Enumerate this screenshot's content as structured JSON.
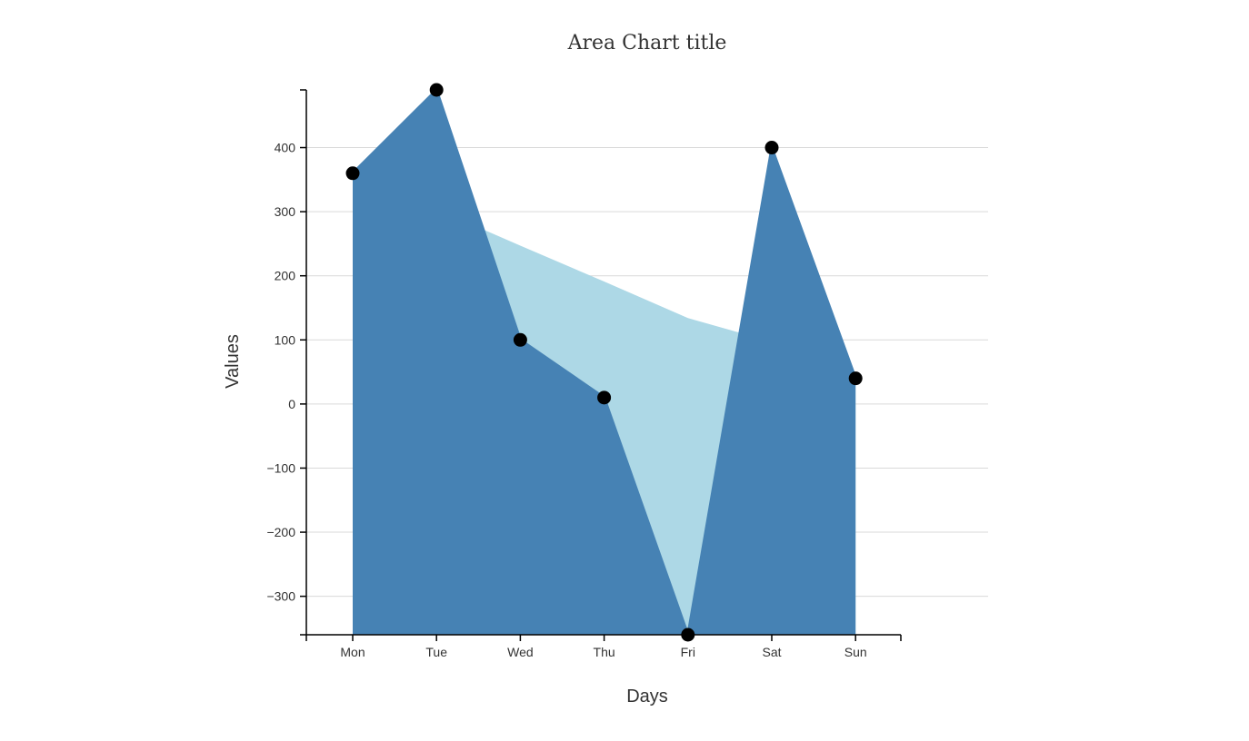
{
  "chart_data": {
    "type": "area",
    "title": "Area Chart title",
    "xlabel": "Days",
    "ylabel": "Values",
    "categories": [
      "Mon",
      "Tue",
      "Wed",
      "Thu",
      "Fri",
      "Sat",
      "Sun"
    ],
    "ylim": [
      -360,
      490
    ],
    "yticks": [
      -300,
      -200,
      -100,
      0,
      100,
      200,
      300,
      400
    ],
    "ytick_labels": [
      "−300",
      "−200",
      "−100",
      "0",
      "100",
      "200",
      "300",
      "400"
    ],
    "grid": true,
    "series": [
      {
        "values": [
          360,
          490,
          100,
          10,
          -360,
          400,
          40
        ],
        "color": "#4682b4",
        "fill": "#4682b4",
        "markers": true
      },
      {
        "values": [
          360,
          304,
          247,
          191,
          134,
          97,
          40
        ],
        "color": "#add8e6",
        "fill": "#add8e6",
        "markers": false
      }
    ]
  }
}
